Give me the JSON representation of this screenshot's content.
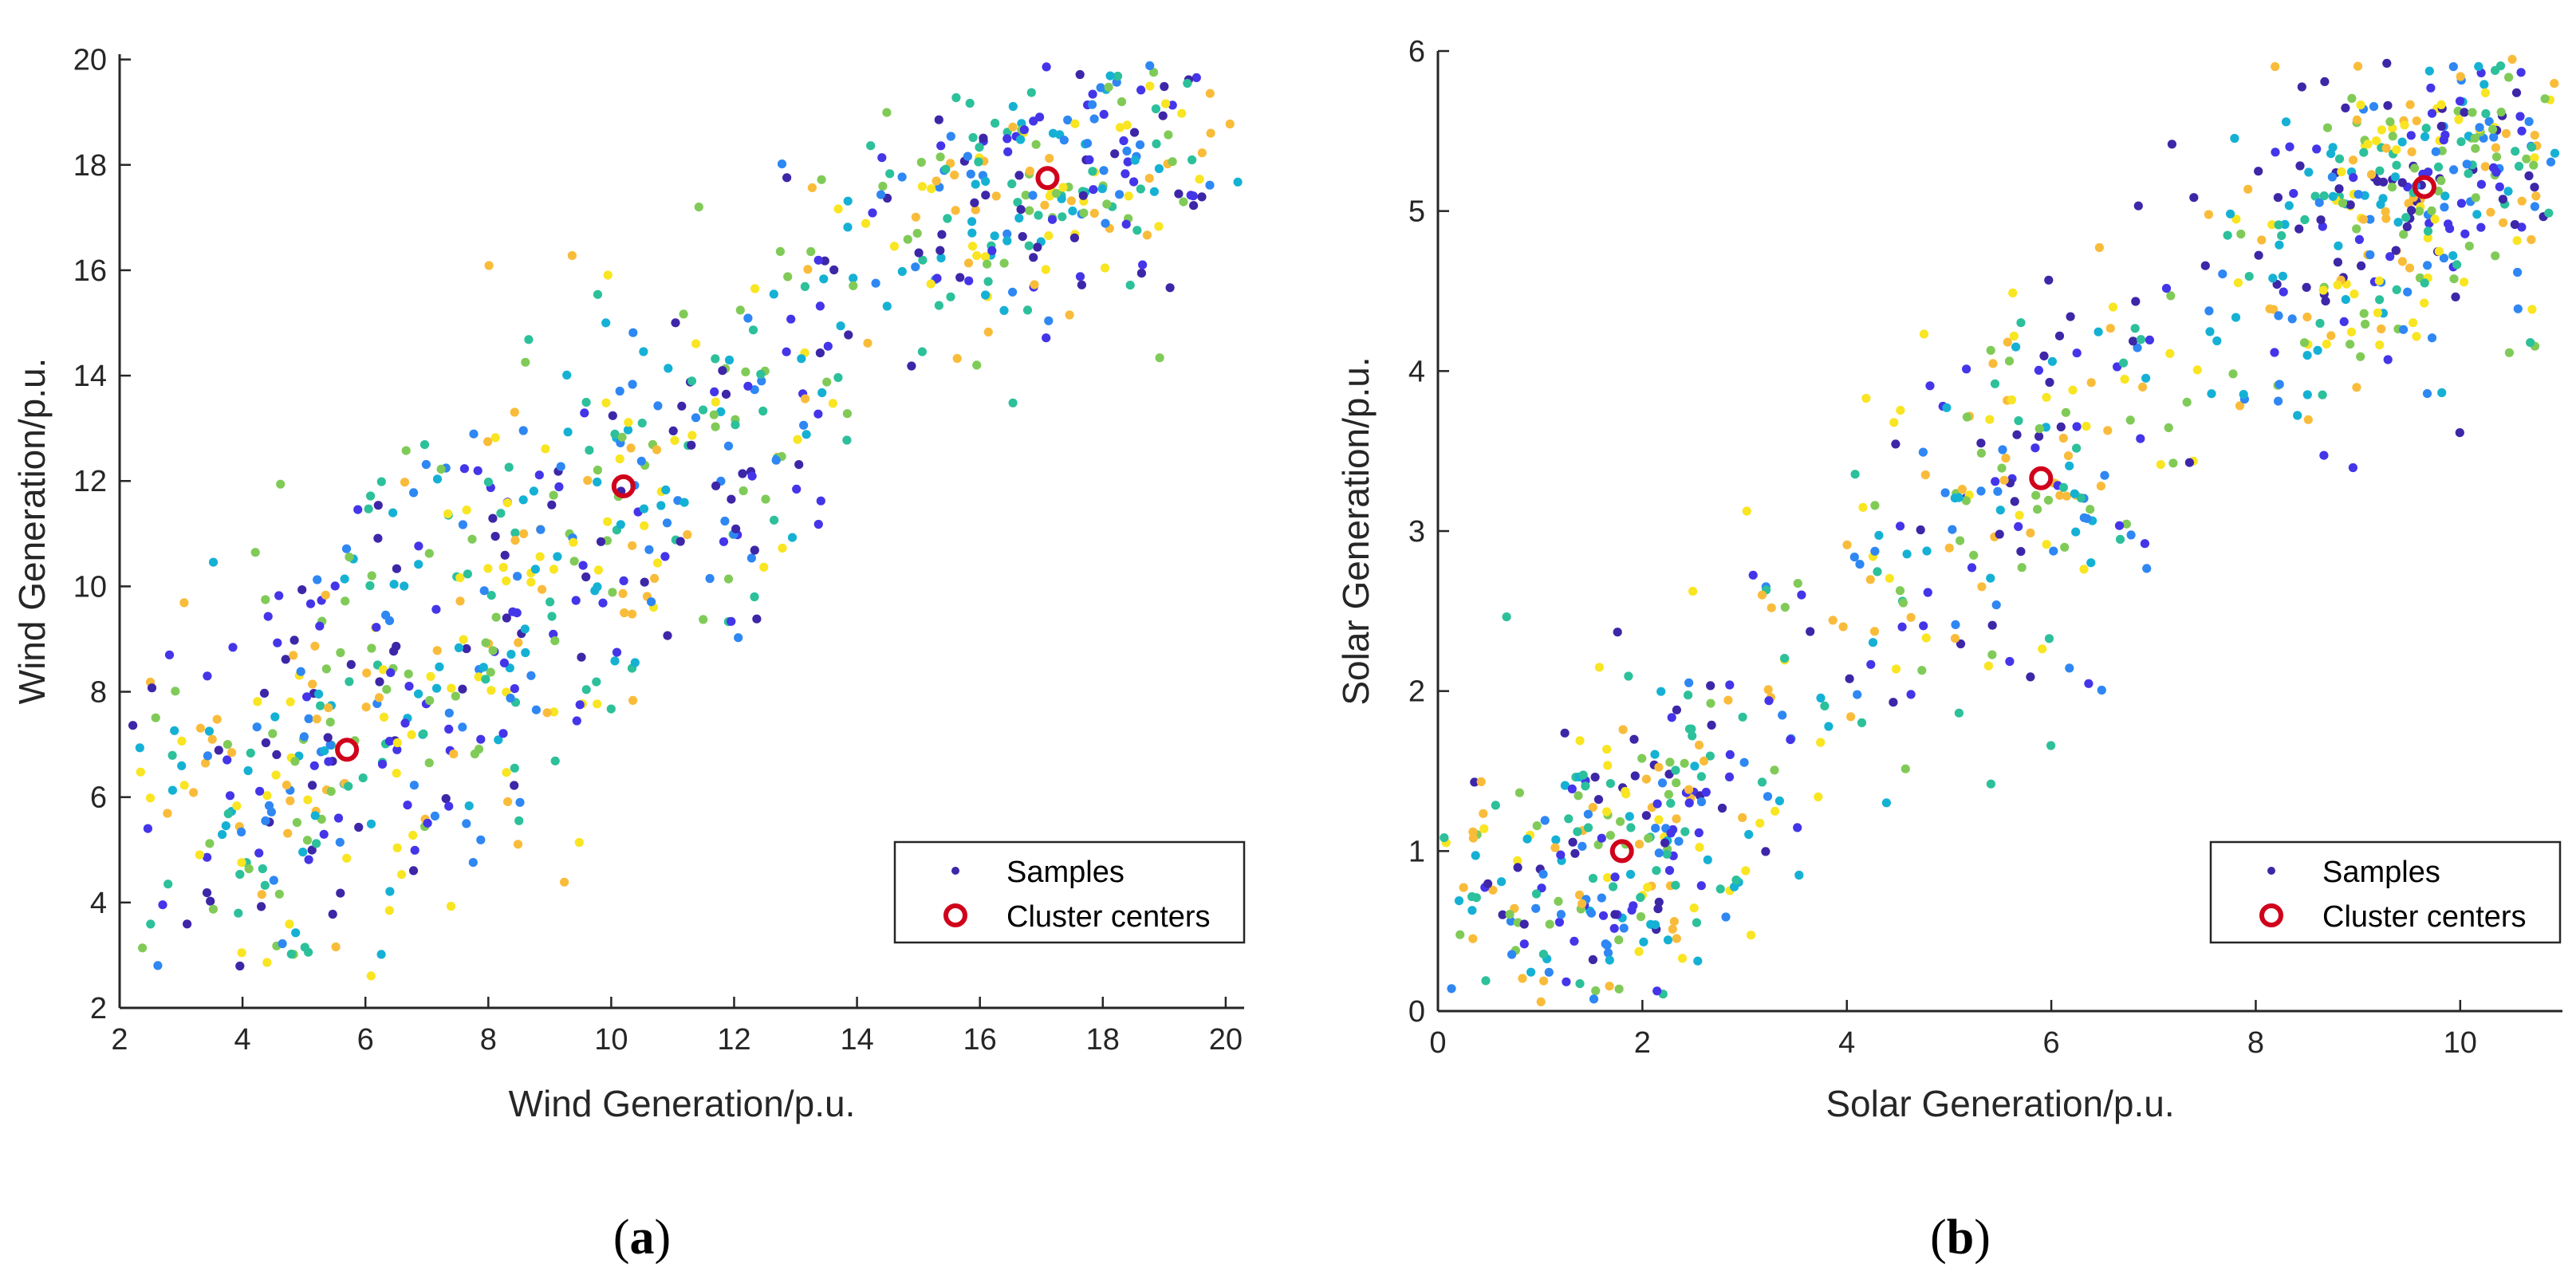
{
  "colormap": [
    "#3e26a8",
    "#4435e9",
    "#2e87f3",
    "#15b1d4",
    "#2cc09b",
    "#80cb58",
    "#f9bc3a",
    "#f9e521"
  ],
  "center_color": "#d0021b",
  "chart_data": [
    {
      "type": "scatter",
      "caption_letter": "a",
      "xlabel": "Wind Generation/p.u.",
      "ylabel": "Wind Generation/p.u.",
      "xlim": [
        2,
        20.3
      ],
      "ylim": [
        2,
        20.1
      ],
      "xticks": [
        2,
        4,
        6,
        8,
        10,
        12,
        14,
        16,
        18,
        20
      ],
      "yticks": [
        2,
        4,
        6,
        8,
        10,
        12,
        14,
        16,
        18,
        20
      ],
      "xtick_labels": [
        "2",
        "4",
        "6",
        "8",
        "10",
        "12",
        "14",
        "16",
        "18",
        "20"
      ],
      "ytick_labels": [
        "2",
        "4",
        "6",
        "8",
        "10",
        "12",
        "14",
        "16",
        "18",
        "20"
      ],
      "legend": {
        "samples_label": "Samples",
        "centers_label": "Cluster centers",
        "location": "bottom-right"
      },
      "cluster_centers": [
        {
          "x": 5.7,
          "y": 6.9
        },
        {
          "x": 10.2,
          "y": 11.9
        },
        {
          "x": 17.1,
          "y": 17.75
        }
      ],
      "sample_clusters": [
        {
          "cx": 5.7,
          "cy": 6.9,
          "sx": 2.0,
          "sy": 2.4,
          "rho": 0.5,
          "n": 330
        },
        {
          "cx": 10.2,
          "cy": 11.9,
          "sx": 2.2,
          "sy": 2.4,
          "rho": 0.6,
          "n": 260
        },
        {
          "cx": 17.1,
          "cy": 17.75,
          "sx": 1.9,
          "sy": 1.6,
          "rho": 0.55,
          "n": 300
        }
      ],
      "sample_count": 890
    },
    {
      "type": "scatter",
      "caption_letter": "b",
      "xlabel": "Solar Generation/p.u.",
      "ylabel": "Solar Generation/p.u.",
      "xlim": [
        0,
        11
      ],
      "ylim": [
        0,
        6
      ],
      "xticks": [
        0,
        2,
        4,
        6,
        8,
        10
      ],
      "yticks": [
        0,
        1,
        2,
        3,
        4,
        5,
        6
      ],
      "xtick_labels": [
        "0",
        "2",
        "4",
        "6",
        "8",
        "10"
      ],
      "ytick_labels": [
        "0",
        "1",
        "2",
        "3",
        "4",
        "5",
        "6"
      ],
      "legend": {
        "samples_label": "Samples",
        "centers_label": "Cluster centers",
        "location": "bottom-right"
      },
      "cluster_centers": [
        {
          "x": 1.8,
          "y": 1.0
        },
        {
          "x": 5.9,
          "y": 3.33
        },
        {
          "x": 9.65,
          "y": 5.15
        }
      ],
      "sample_clusters": [
        {
          "cx": 1.8,
          "cy": 1.0,
          "sx": 0.9,
          "sy": 0.6,
          "rho": 0.45,
          "n": 280
        },
        {
          "cx": 5.9,
          "cy": 3.33,
          "sx": 1.6,
          "sy": 0.9,
          "rho": 0.75,
          "n": 260
        },
        {
          "cx": 9.65,
          "cy": 5.15,
          "sx": 0.85,
          "sy": 0.55,
          "rho": 0.3,
          "n": 360
        }
      ],
      "sample_count": 900
    }
  ]
}
